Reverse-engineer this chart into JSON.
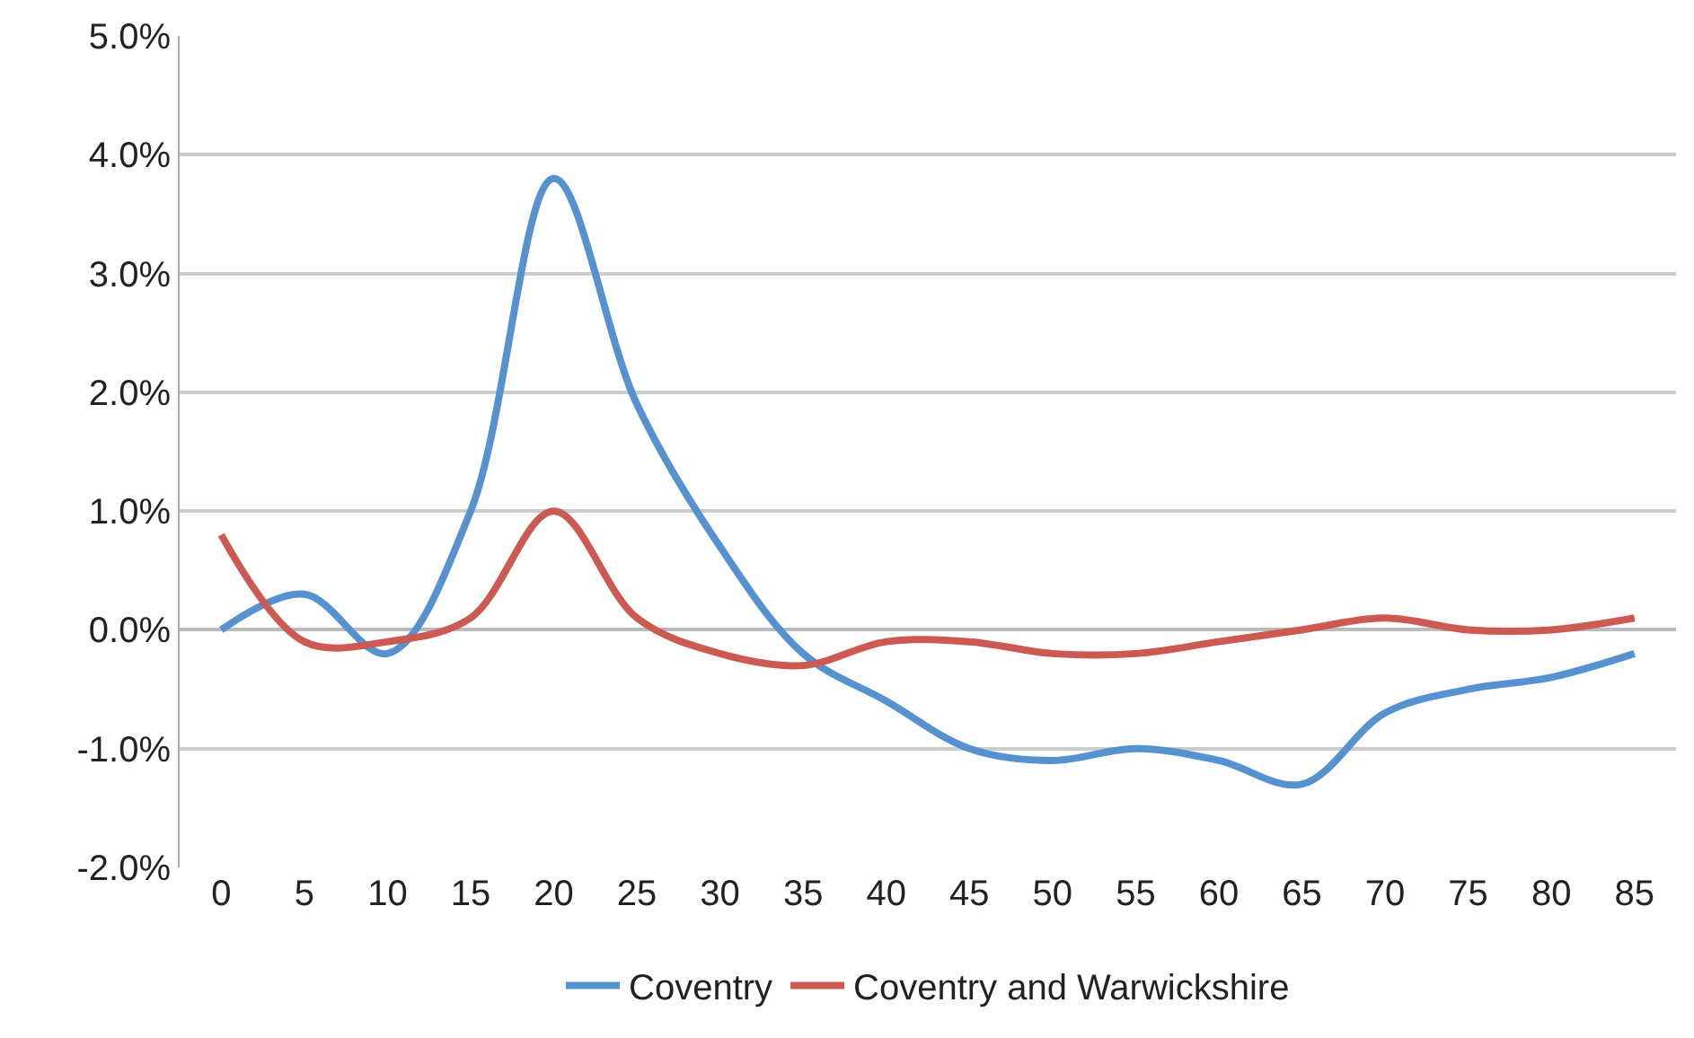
{
  "chart_data": {
    "type": "line",
    "categories": [
      "0",
      "5",
      "10",
      "15",
      "20",
      "25",
      "30",
      "35",
      "40",
      "45",
      "50",
      "55",
      "60",
      "65",
      "70",
      "75",
      "80",
      "85"
    ],
    "series": [
      {
        "name": "Coventry",
        "color": "#5592cf",
        "values": [
          0.0,
          0.3,
          -0.2,
          1.0,
          3.8,
          1.9,
          0.7,
          -0.2,
          -0.6,
          -1.0,
          -1.1,
          -1.0,
          -1.1,
          -1.3,
          -0.7,
          -0.5,
          -0.4,
          -0.2
        ]
      },
      {
        "name": "Coventry and Warwickshire",
        "color": "#cc5a52",
        "values": [
          0.8,
          -0.1,
          -0.1,
          0.1,
          1.0,
          0.1,
          -0.2,
          -0.3,
          -0.1,
          -0.1,
          -0.2,
          -0.2,
          -0.1,
          0.0,
          0.1,
          0.0,
          0.0,
          0.1
        ]
      }
    ],
    "ylim": [
      -2.0,
      5.0
    ],
    "yticks": [
      {
        "value": -2.0,
        "label": "-2.0%"
      },
      {
        "value": -1.0,
        "label": "-1.0%"
      },
      {
        "value": 0.0,
        "label": "0.0%"
      },
      {
        "value": 1.0,
        "label": "1.0%"
      },
      {
        "value": 2.0,
        "label": "2.0%"
      },
      {
        "value": 3.0,
        "label": "3.0%"
      },
      {
        "value": 4.0,
        "label": "4.0%"
      },
      {
        "value": 5.0,
        "label": "5.0%"
      }
    ],
    "grid": "y",
    "legend": "bottom",
    "marker": "none",
    "line_style": "solid"
  }
}
